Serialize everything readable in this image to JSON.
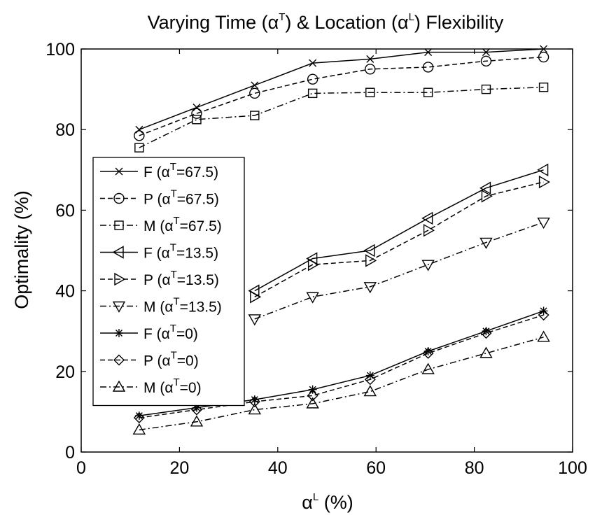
{
  "chart_data": {
    "type": "line",
    "title": "Varying Time (αT) & Location (αL) Flexibility",
    "title_parts": {
      "prefix": "Varying Time (α",
      "sup1": "T",
      "middle": ") & Location (α",
      "sup2": "L",
      "suffix": ") Flexibility"
    },
    "xlabel": "αL (%)",
    "xlabel_parts": {
      "alpha": "α",
      "sup": "L",
      "rest": " (%)"
    },
    "ylabel": "Optimality (%)",
    "xlim": [
      0,
      100
    ],
    "ylim": [
      0,
      100
    ],
    "xticks": [
      0,
      20,
      40,
      60,
      80,
      100
    ],
    "yticks": [
      0,
      20,
      40,
      60,
      80,
      100
    ],
    "grid": false,
    "legend_position": "left",
    "x": [
      11.8,
      23.5,
      35.3,
      47.1,
      58.8,
      70.6,
      82.4,
      94.1
    ],
    "series": [
      {
        "name": "F (αT=67.5)",
        "letter": "F",
        "alpha_value": "=67.5)",
        "marker": "x",
        "dash": "solid",
        "values": [
          80,
          85.5,
          91,
          96.5,
          97.5,
          99.2,
          99.2,
          100
        ]
      },
      {
        "name": "P (αT=67.5)",
        "letter": "P",
        "alpha_value": "=67.5)",
        "marker": "circle",
        "dash": "dashed",
        "values": [
          78.5,
          84,
          89,
          92.5,
          95,
          95.5,
          97,
          98
        ]
      },
      {
        "name": "M (αT=67.5)",
        "letter": "M",
        "alpha_value": "=67.5)",
        "marker": "square",
        "dash": "dashdot",
        "values": [
          75.5,
          82.5,
          83.5,
          89,
          89.2,
          89.2,
          90,
          90.5
        ]
      },
      {
        "name": "F (αT=13.5)",
        "letter": "F",
        "alpha_value": "=13.5)",
        "marker": "triangle-left",
        "dash": "solid",
        "values": [
          null,
          null,
          40,
          48,
          50,
          58,
          65.5,
          70
        ]
      },
      {
        "name": "P (αT=13.5)",
        "letter": "P",
        "alpha_value": "=13.5)",
        "marker": "triangle-right",
        "dash": "dashed",
        "values": [
          null,
          null,
          38.5,
          46.5,
          47.5,
          55,
          63.5,
          67
        ]
      },
      {
        "name": "M (αT=13.5)",
        "letter": "M",
        "alpha_value": "=13.5)",
        "marker": "triangle-down",
        "dash": "dashdot",
        "values": [
          null,
          null,
          33,
          38.5,
          41,
          46.5,
          52,
          57
        ]
      },
      {
        "name": "F (αT=0)",
        "letter": "F",
        "alpha_value": "=0)",
        "marker": "star",
        "dash": "solid",
        "values": [
          9,
          11,
          13,
          15.5,
          19,
          25,
          30,
          35
        ]
      },
      {
        "name": "P (αT=0)",
        "letter": "P",
        "alpha_value": "=0)",
        "marker": "diamond",
        "dash": "dashed",
        "values": [
          8.5,
          10.5,
          12.5,
          14,
          18,
          24.5,
          29.5,
          34
        ]
      },
      {
        "name": "M (αT=0)",
        "letter": "M",
        "alpha_value": "=0)",
        "marker": "triangle-up",
        "dash": "dashdot",
        "values": [
          5.5,
          7.5,
          10.5,
          12,
          15,
          20.5,
          24.5,
          28.5
        ]
      }
    ]
  }
}
